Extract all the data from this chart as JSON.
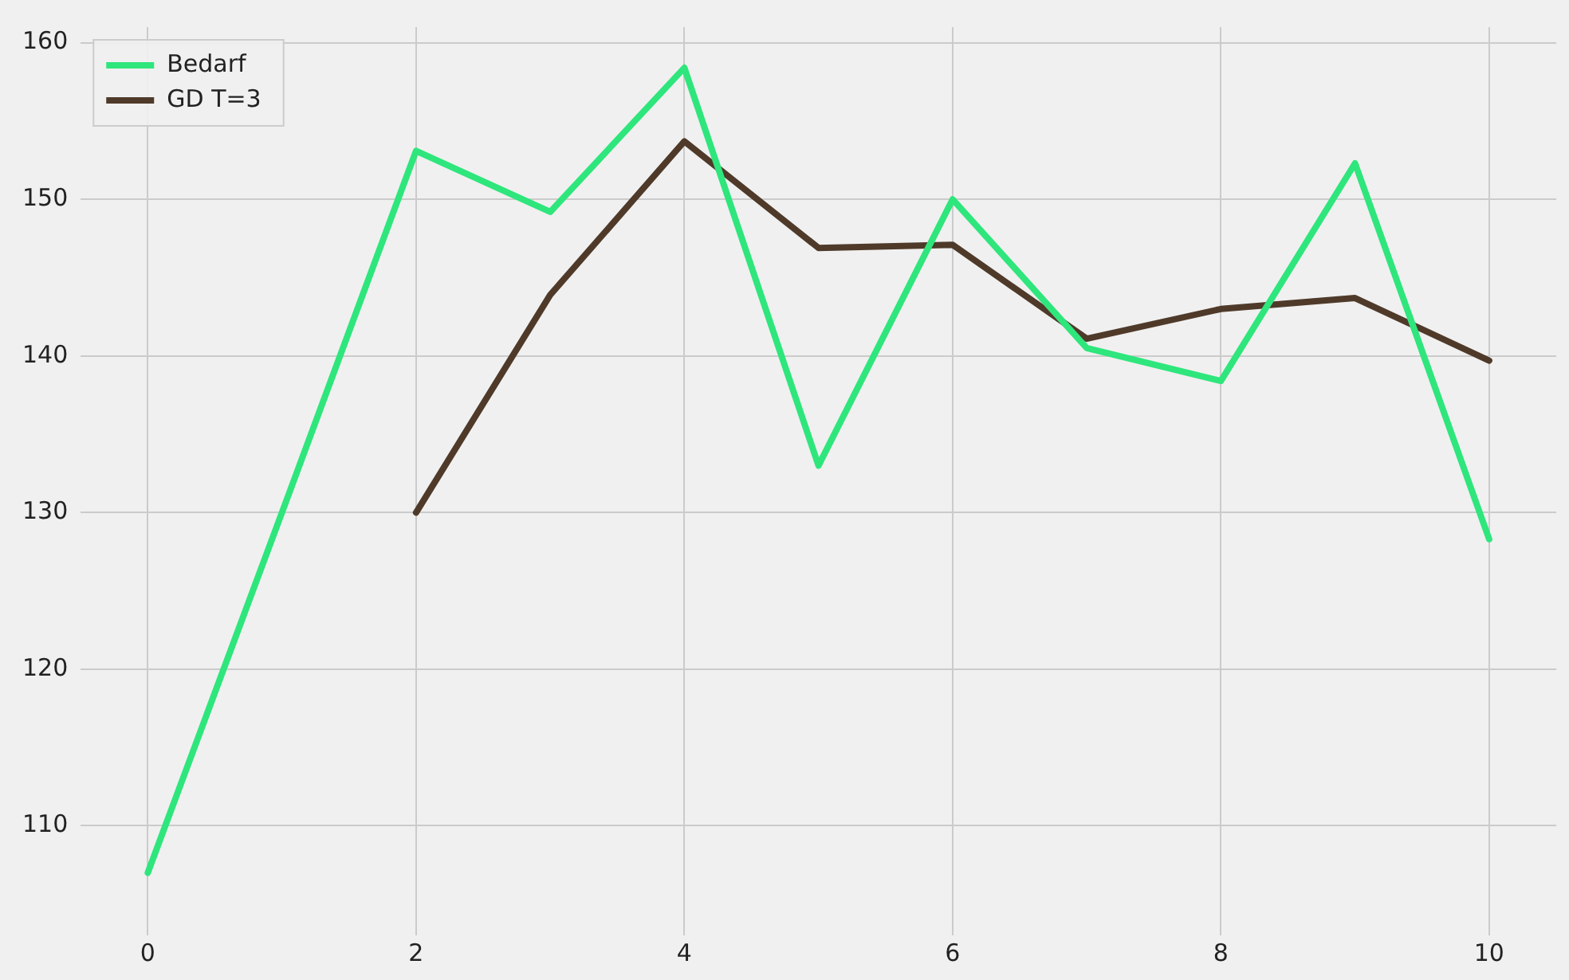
{
  "chart_data": {
    "type": "line",
    "x": [
      0,
      1,
      2,
      3,
      4,
      5,
      6,
      7,
      8,
      9,
      10
    ],
    "series": [
      {
        "name": "Bedarf",
        "color": "#2ee67c",
        "values": [
          107.0,
          130.0,
          153.1,
          149.2,
          158.4,
          133.0,
          150.0,
          140.5,
          138.4,
          152.3,
          128.3
        ]
      },
      {
        "name": "GD T=3",
        "color": "#4f3a2a",
        "values": [
          null,
          null,
          130.0,
          143.9,
          153.7,
          146.9,
          147.1,
          141.1,
          143.0,
          143.7,
          139.7
        ]
      }
    ],
    "xlim": [
      -0.5,
      10.5
    ],
    "xticks": [
      0,
      2,
      4,
      6,
      8,
      10
    ],
    "ylim": [
      103,
      161
    ],
    "yticks": [
      110,
      120,
      130,
      140,
      150,
      160
    ],
    "grid": true,
    "legend": "top left",
    "marker": "none",
    "line_style": "solid"
  }
}
